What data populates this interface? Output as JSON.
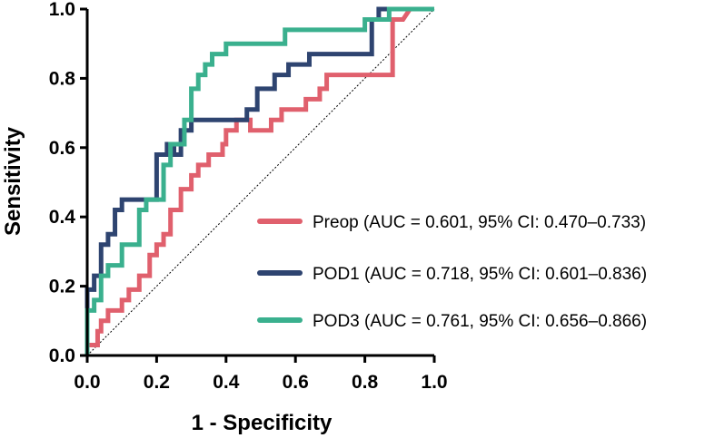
{
  "chart_data": {
    "type": "line",
    "title": "",
    "xlabel": "1 - Specificity",
    "ylabel": "Sensitivity",
    "xlim": [
      0,
      1
    ],
    "ylim": [
      0,
      1
    ],
    "xticks": [
      "0.0",
      "0.2",
      "0.4",
      "0.6",
      "0.8",
      "1.0"
    ],
    "yticks": [
      "0.0",
      "0.2",
      "0.4",
      "0.6",
      "0.8",
      "1.0"
    ],
    "reference_line": "diagonal",
    "legend_position": "bottom-right",
    "series": [
      {
        "name": "Preop (AUC = 0.601, 95% CI: 0.470–0.733)",
        "color": "#e0606d",
        "points": [
          [
            0,
            0
          ],
          [
            0,
            0.03
          ],
          [
            0.03,
            0.03
          ],
          [
            0.03,
            0.07
          ],
          [
            0.04,
            0.07
          ],
          [
            0.04,
            0.1
          ],
          [
            0.06,
            0.1
          ],
          [
            0.06,
            0.13
          ],
          [
            0.1,
            0.13
          ],
          [
            0.1,
            0.16
          ],
          [
            0.12,
            0.16
          ],
          [
            0.12,
            0.19
          ],
          [
            0.15,
            0.19
          ],
          [
            0.15,
            0.23
          ],
          [
            0.18,
            0.23
          ],
          [
            0.18,
            0.29
          ],
          [
            0.2,
            0.29
          ],
          [
            0.2,
            0.32
          ],
          [
            0.22,
            0.32
          ],
          [
            0.22,
            0.35
          ],
          [
            0.24,
            0.35
          ],
          [
            0.24,
            0.42
          ],
          [
            0.27,
            0.42
          ],
          [
            0.27,
            0.48
          ],
          [
            0.3,
            0.48
          ],
          [
            0.3,
            0.52
          ],
          [
            0.32,
            0.52
          ],
          [
            0.32,
            0.55
          ],
          [
            0.35,
            0.55
          ],
          [
            0.35,
            0.58
          ],
          [
            0.39,
            0.58
          ],
          [
            0.39,
            0.61
          ],
          [
            0.4,
            0.61
          ],
          [
            0.4,
            0.65
          ],
          [
            0.43,
            0.65
          ],
          [
            0.43,
            0.68
          ],
          [
            0.47,
            0.68
          ],
          [
            0.47,
            0.65
          ],
          [
            0.53,
            0.65
          ],
          [
            0.53,
            0.68
          ],
          [
            0.56,
            0.68
          ],
          [
            0.56,
            0.71
          ],
          [
            0.63,
            0.71
          ],
          [
            0.63,
            0.74
          ],
          [
            0.67,
            0.74
          ],
          [
            0.67,
            0.77
          ],
          [
            0.69,
            0.77
          ],
          [
            0.69,
            0.81
          ],
          [
            0.72,
            0.81
          ],
          [
            0.72,
            0.81
          ],
          [
            0.88,
            0.81
          ],
          [
            0.88,
            0.97
          ],
          [
            0.91,
            0.97
          ],
          [
            0.91,
            0.97
          ],
          [
            0.93,
            1.0
          ],
          [
            1.0,
            1.0
          ]
        ]
      },
      {
        "name": "POD1 (AUC = 0.718, 95% CI: 0.601–0.836)",
        "color": "#2e4470",
        "points": [
          [
            0,
            0
          ],
          [
            0,
            0.19
          ],
          [
            0.02,
            0.19
          ],
          [
            0.02,
            0.23
          ],
          [
            0.04,
            0.23
          ],
          [
            0.04,
            0.32
          ],
          [
            0.06,
            0.32
          ],
          [
            0.06,
            0.35
          ],
          [
            0.08,
            0.35
          ],
          [
            0.08,
            0.42
          ],
          [
            0.1,
            0.42
          ],
          [
            0.1,
            0.45
          ],
          [
            0.2,
            0.45
          ],
          [
            0.2,
            0.58
          ],
          [
            0.23,
            0.58
          ],
          [
            0.23,
            0.61
          ],
          [
            0.25,
            0.61
          ],
          [
            0.25,
            0.58
          ],
          [
            0.27,
            0.58
          ],
          [
            0.27,
            0.65
          ],
          [
            0.3,
            0.65
          ],
          [
            0.3,
            0.68
          ],
          [
            0.46,
            0.68
          ],
          [
            0.46,
            0.71
          ],
          [
            0.49,
            0.71
          ],
          [
            0.49,
            0.77
          ],
          [
            0.54,
            0.77
          ],
          [
            0.54,
            0.81
          ],
          [
            0.58,
            0.81
          ],
          [
            0.58,
            0.84
          ],
          [
            0.64,
            0.84
          ],
          [
            0.64,
            0.87
          ],
          [
            0.82,
            0.87
          ],
          [
            0.82,
            0.97
          ],
          [
            0.84,
            0.97
          ],
          [
            0.84,
            1.0
          ],
          [
            1.0,
            1.0
          ]
        ]
      },
      {
        "name": "POD3 (AUC = 0.761, 95% CI: 0.656–0.866)",
        "color": "#3ab08e",
        "points": [
          [
            0,
            0
          ],
          [
            0,
            0.13
          ],
          [
            0.02,
            0.13
          ],
          [
            0.02,
            0.16
          ],
          [
            0.04,
            0.16
          ],
          [
            0.04,
            0.23
          ],
          [
            0.06,
            0.23
          ],
          [
            0.06,
            0.26
          ],
          [
            0.1,
            0.26
          ],
          [
            0.1,
            0.32
          ],
          [
            0.15,
            0.32
          ],
          [
            0.15,
            0.42
          ],
          [
            0.17,
            0.42
          ],
          [
            0.17,
            0.45
          ],
          [
            0.22,
            0.45
          ],
          [
            0.22,
            0.55
          ],
          [
            0.24,
            0.55
          ],
          [
            0.24,
            0.61
          ],
          [
            0.28,
            0.61
          ],
          [
            0.28,
            0.68
          ],
          [
            0.3,
            0.68
          ],
          [
            0.3,
            0.77
          ],
          [
            0.32,
            0.77
          ],
          [
            0.32,
            0.81
          ],
          [
            0.34,
            0.81
          ],
          [
            0.34,
            0.84
          ],
          [
            0.36,
            0.84
          ],
          [
            0.36,
            0.87
          ],
          [
            0.4,
            0.87
          ],
          [
            0.4,
            0.9
          ],
          [
            0.57,
            0.9
          ],
          [
            0.57,
            0.94
          ],
          [
            0.8,
            0.94
          ],
          [
            0.8,
            0.97
          ],
          [
            0.87,
            0.97
          ],
          [
            0.87,
            1.0
          ],
          [
            1.0,
            1.0
          ]
        ]
      }
    ]
  }
}
